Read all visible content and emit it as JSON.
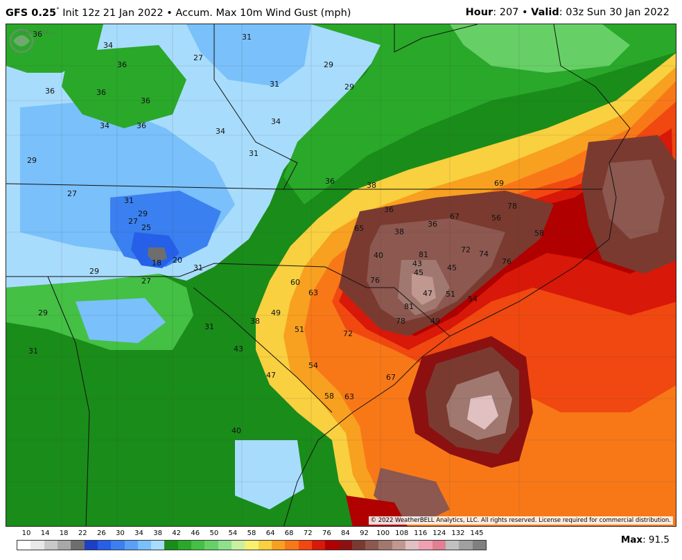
{
  "header": {
    "model": "GFS 0.25",
    "degree": "°",
    "init": "Init 12z 21 Jan 2022",
    "separator": "•",
    "product": "Accum. Max 10m Wind Gust (mph)",
    "hour_label": "Hour",
    "hour_value": ": 207",
    "valid_label": "Valid",
    "valid_value": ": 03z Sun 30 Jan 2022"
  },
  "map": {
    "copyright": "© 2022 WeatherBELL Analytics, LLC. All rights reserved. License required for commercial distribution.",
    "logo": "WEATHERBELL",
    "contour_labels": [
      "36",
      "34",
      "36",
      "36",
      "36",
      "36",
      "36",
      "34",
      "29",
      "27",
      "31",
      "29",
      "29",
      "31",
      "27",
      "29",
      "31",
      "27",
      "25",
      "18",
      "20",
      "27",
      "31",
      "34",
      "31",
      "29",
      "29",
      "31",
      "31",
      "34",
      "36",
      "38",
      "36",
      "36",
      "38",
      "40",
      "43",
      "45",
      "47",
      "49",
      "51",
      "54",
      "56",
      "58",
      "60",
      "63",
      "65",
      "67",
      "69",
      "72",
      "74",
      "76",
      "78",
      "81",
      "45",
      "43",
      "38",
      "40",
      "47",
      "49",
      "51",
      "54",
      "58",
      "63",
      "67",
      "72",
      "76",
      "78",
      "81"
    ]
  },
  "legend": {
    "ticks": [
      "10",
      "14",
      "18",
      "22",
      "26",
      "30",
      "34",
      "38",
      "42",
      "46",
      "50",
      "54",
      "58",
      "64",
      "68",
      "72",
      "76",
      "84",
      "92",
      "100",
      "108",
      "116",
      "124",
      "132",
      "145"
    ],
    "colors": [
      "#ffffff",
      "#e8e8e8",
      "#c8c8c8",
      "#a8a8a8",
      "#6e6e6e",
      "#1c3fc8",
      "#2660e8",
      "#3a80f0",
      "#5aa0f6",
      "#7ac0fa",
      "#a8dcfc",
      "#1a8c1a",
      "#2aa82a",
      "#44c044",
      "#66d066",
      "#8ee08e",
      "#c8f0a0",
      "#f8f070",
      "#f8d040",
      "#f8a020",
      "#f87818",
      "#f04810",
      "#d81808",
      "#b00000",
      "#8c1010",
      "#7a3a30",
      "#8c5850",
      "#a07870",
      "#c09890",
      "#e0c0c0",
      "#f0a0b0",
      "#e08090",
      "#c0c0c0",
      "#a0a0a0",
      "#808080"
    ]
  },
  "max": {
    "label": "Max",
    "value": ": 91.5"
  }
}
